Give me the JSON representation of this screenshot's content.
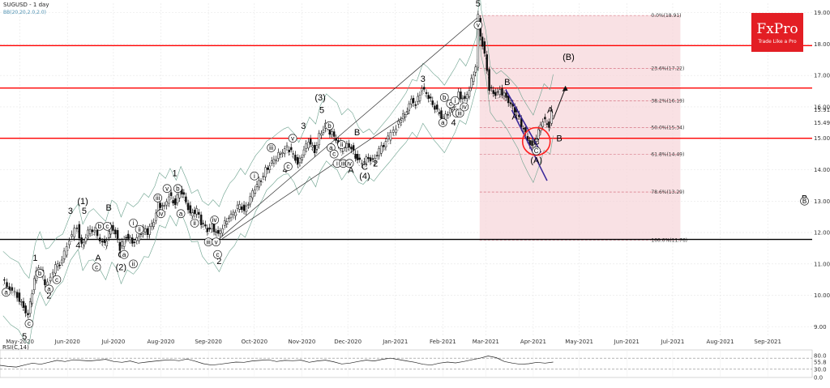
{
  "header": {
    "title": "SUGUSD - 1 day",
    "bb_label": "BB(20,20,2.0,2.0)"
  },
  "logo": {
    "brand": "FxPro",
    "tagline": "Trade Like a Pro",
    "color": "#e31e24"
  },
  "chart_data": {
    "type": "candlestick",
    "symbol": "SUGUSD",
    "timeframe": "1 day",
    "ylim": [
      8.7,
      19.3
    ],
    "y_ticks": [
      "19.00",
      "18.00",
      "17.00",
      "16.00",
      "15.00",
      "14.00",
      "13.00",
      "12.00",
      "11.00",
      "10.00",
      "9.00"
    ],
    "x_ticks": [
      "May-2020",
      "Jun-2020",
      "Jul-2020",
      "Aug-2020",
      "Sep-2020",
      "Oct-2020",
      "Nov-2020",
      "Dec-2020",
      "Jan-2021",
      "Feb-2021",
      "Mar-2021",
      "Apr-2021",
      "May-2021",
      "Jun-2021",
      "Jul-2021",
      "Aug-2021",
      "Sep-2021"
    ],
    "price_path": [
      [
        "2020-04-20",
        10.5
      ],
      [
        "2020-04-25",
        10.2
      ],
      [
        "2020-04-30",
        10.0
      ],
      [
        "2020-05-04",
        9.6
      ],
      [
        "2020-05-07",
        9.4
      ],
      [
        "2020-05-11",
        10.5
      ],
      [
        "2020-05-14",
        10.9
      ],
      [
        "2020-05-18",
        10.4
      ],
      [
        "2020-05-20",
        10.5
      ],
      [
        "2020-05-25",
        10.9
      ],
      [
        "2020-05-29",
        11.1
      ],
      [
        "2020-06-03",
        11.8
      ],
      [
        "2020-06-08",
        12.2
      ],
      [
        "2020-06-11",
        11.6
      ],
      [
        "2020-06-15",
        12.0
      ],
      [
        "2020-06-18",
        12.1
      ],
      [
        "2020-06-23",
        11.8
      ],
      [
        "2020-06-26",
        11.6
      ],
      [
        "2020-06-30",
        12.2
      ],
      [
        "2020-07-03",
        12.0
      ],
      [
        "2020-07-06",
        11.5
      ],
      [
        "2020-07-10",
        11.9
      ],
      [
        "2020-07-14",
        11.7
      ],
      [
        "2020-07-17",
        11.8
      ],
      [
        "2020-07-21",
        12.1
      ],
      [
        "2020-07-24",
        12.0
      ],
      [
        "2020-07-28",
        12.4
      ],
      [
        "2020-07-31",
        12.9
      ],
      [
        "2020-08-04",
        12.8
      ],
      [
        "2020-08-07",
        13.2
      ],
      [
        "2020-08-11",
        12.9
      ],
      [
        "2020-08-14",
        13.4
      ],
      [
        "2020-08-18",
        13.0
      ],
      [
        "2020-08-21",
        12.6
      ],
      [
        "2020-08-25",
        12.7
      ],
      [
        "2020-08-28",
        12.3
      ],
      [
        "2020-09-01",
        12.1
      ],
      [
        "2020-09-04",
        12.2
      ],
      [
        "2020-09-08",
        11.9
      ],
      [
        "2020-09-11",
        12.2
      ],
      [
        "2020-09-15",
        12.5
      ],
      [
        "2020-09-18",
        12.6
      ],
      [
        "2020-09-22",
        12.9
      ],
      [
        "2020-09-25",
        12.7
      ],
      [
        "2020-09-29",
        13.1
      ],
      [
        "2020-10-02",
        13.4
      ],
      [
        "2020-10-06",
        13.7
      ],
      [
        "2020-10-09",
        14.0
      ],
      [
        "2020-10-13",
        14.2
      ],
      [
        "2020-10-16",
        14.4
      ],
      [
        "2020-10-20",
        14.6
      ],
      [
        "2020-10-23",
        14.7
      ],
      [
        "2020-10-27",
        14.5
      ],
      [
        "2020-10-30",
        14.2
      ],
      [
        "2020-11-03",
        14.6
      ],
      [
        "2020-11-06",
        14.9
      ],
      [
        "2020-11-10",
        14.6
      ],
      [
        "2020-11-13",
        15.1
      ],
      [
        "2020-11-17",
        15.4
      ],
      [
        "2020-11-20",
        15.2
      ],
      [
        "2020-11-24",
        15.0
      ],
      [
        "2020-11-27",
        14.6
      ],
      [
        "2020-12-01",
        14.8
      ],
      [
        "2020-12-04",
        14.7
      ],
      [
        "2020-12-08",
        14.3
      ],
      [
        "2020-12-11",
        14.2
      ],
      [
        "2020-12-15",
        14.4
      ],
      [
        "2020-12-18",
        14.3
      ],
      [
        "2020-12-22",
        14.6
      ],
      [
        "2020-12-28",
        15.0
      ],
      [
        "2021-01-04",
        15.5
      ],
      [
        "2021-01-08",
        15.8
      ],
      [
        "2021-01-12",
        16.2
      ],
      [
        "2021-01-15",
        16.1
      ],
      [
        "2021-01-19",
        16.6
      ],
      [
        "2021-01-22",
        16.4
      ],
      [
        "2021-01-26",
        16.1
      ],
      [
        "2021-01-29",
        15.9
      ],
      [
        "2021-02-02",
        15.6
      ],
      [
        "2021-02-05",
        15.8
      ],
      [
        "2021-02-09",
        16.1
      ],
      [
        "2021-02-12",
        16.4
      ],
      [
        "2021-02-16",
        16.2
      ],
      [
        "2021-02-19",
        16.6
      ],
      [
        "2021-02-23",
        17.3
      ],
      [
        "2021-02-25",
        18.9
      ],
      [
        "2021-02-26",
        18.3
      ],
      [
        "2021-03-01",
        17.7
      ],
      [
        "2021-03-04",
        16.6
      ],
      [
        "2021-03-08",
        16.4
      ],
      [
        "2021-03-11",
        16.5
      ],
      [
        "2021-03-15",
        16.3
      ],
      [
        "2021-03-18",
        16.1
      ],
      [
        "2021-03-22",
        15.8
      ],
      [
        "2021-03-25",
        15.4
      ],
      [
        "2021-03-29",
        15.0
      ],
      [
        "2021-04-01",
        14.7
      ],
      [
        "2021-04-05",
        15.2
      ],
      [
        "2021-04-08",
        15.6
      ],
      [
        "2021-04-12",
        15.4
      ],
      [
        "2021-04-14",
        15.9
      ]
    ],
    "horizontal_levels": [
      {
        "price": 17.95,
        "color": "#ff0000"
      },
      {
        "price": 16.6,
        "color": "#ff0000"
      },
      {
        "price": 15.0,
        "color": "#ff0000"
      },
      {
        "price": 11.78,
        "color": "#000000"
      }
    ],
    "fibonacci": {
      "from_date": "2021-02-25",
      "to_date": "2021-07-06",
      "levels": [
        {
          "label": "0.0%(18.91)",
          "price": 18.91
        },
        {
          "label": "23.6%(17.22)",
          "price": 17.22
        },
        {
          "label": "38.2%(16.19)",
          "price": 16.19
        },
        {
          "label": "50.0%(15.34)",
          "price": 15.34
        },
        {
          "label": "61.8%(14.49)",
          "price": 14.49
        },
        {
          "label": "78.6%(13.29)",
          "price": 13.29
        },
        {
          "label": "100.0%(11.76)",
          "price": 11.76
        }
      ]
    },
    "right_axis_tags": [
      {
        "label": "15.91",
        "price": 15.91,
        "color": "#555555"
      },
      {
        "label": "15.49",
        "price": 15.49,
        "color": "#cc3333"
      }
    ],
    "wave_labels": [
      {
        "text": "1",
        "date": "2020-05-11",
        "price": 11.1
      },
      {
        "text": "2",
        "date": "2020-05-20",
        "price": 9.9
      },
      {
        "text": "5",
        "date": "2020-05-04",
        "price": 8.6
      },
      {
        "text": "3",
        "date": "2020-06-03",
        "price": 12.6
      },
      {
        "text": "(1)",
        "date": "2020-06-11",
        "price": 12.9
      },
      {
        "text": "5",
        "date": "2020-06-12",
        "price": 12.6
      },
      {
        "text": "4",
        "date": "2020-06-08",
        "price": 11.5
      },
      {
        "text": "B",
        "date": "2020-06-28",
        "price": 12.7
      },
      {
        "text": "A",
        "date": "2020-06-21",
        "price": 11.1
      },
      {
        "text": "C",
        "date": "2020-07-06",
        "price": 11.2
      },
      {
        "text": "(2)",
        "date": "2020-07-06",
        "price": 10.8
      },
      {
        "text": "1",
        "date": "2020-08-10",
        "price": 13.8
      },
      {
        "text": "2",
        "date": "2020-09-08",
        "price": 11.0
      },
      {
        "text": "4",
        "date": "2020-10-21",
        "price": 13.9
      },
      {
        "text": "3",
        "date": "2020-11-02",
        "price": 15.3
      },
      {
        "text": "(3)",
        "date": "2020-11-13",
        "price": 16.2
      },
      {
        "text": "5",
        "date": "2020-11-14",
        "price": 15.8
      },
      {
        "text": "B",
        "date": "2020-12-07",
        "price": 15.1
      },
      {
        "text": "A",
        "date": "2020-12-03",
        "price": 13.9
      },
      {
        "text": "C",
        "date": "2020-12-12",
        "price": 14.0
      },
      {
        "text": "2",
        "date": "2020-12-19",
        "price": 14.1
      },
      {
        "text": "(4)",
        "date": "2020-12-12",
        "price": 13.7
      },
      {
        "text": "3",
        "date": "2021-01-19",
        "price": 16.8
      },
      {
        "text": "4",
        "date": "2021-02-08",
        "price": 15.4
      },
      {
        "text": "5",
        "date": "2021-02-24",
        "price": 19.2
      },
      {
        "text": "(B)",
        "date": "2021-04-24",
        "price": 17.5
      },
      {
        "text": "B",
        "date": "2021-03-15",
        "price": 16.7
      },
      {
        "text": "A",
        "date": "2021-03-20",
        "price": 15.6
      },
      {
        "text": "A",
        "date": "2021-04-12",
        "price": 15.8
      },
      {
        "text": "B",
        "date": "2021-04-18",
        "price": 14.9
      },
      {
        "text": "C",
        "date": "2021-04-03",
        "price": 14.8
      },
      {
        "text": "(A)",
        "date": "2021-04-03",
        "price": 14.2
      },
      {
        "text": "B",
        "date": "2021-09-25",
        "price": 13.0
      }
    ],
    "circled_labels": [
      {
        "text": "a",
        "date": "2020-04-22",
        "price": 10.1
      },
      {
        "text": "b",
        "date": "2020-05-14",
        "price": 10.7
      },
      {
        "text": "c",
        "date": "2020-05-07",
        "price": 9.1
      },
      {
        "text": "a",
        "date": "2020-05-20",
        "price": 10.2
      },
      {
        "text": "c",
        "date": "2020-05-25",
        "price": 10.5
      },
      {
        "text": "b",
        "date": "2020-06-22",
        "price": 12.2
      },
      {
        "text": "c",
        "date": "2020-06-27",
        "price": 12.2
      },
      {
        "text": "c",
        "date": "2020-06-20",
        "price": 10.9
      },
      {
        "text": "a",
        "date": "2020-07-08",
        "price": 11.3
      },
      {
        "text": "ii",
        "date": "2020-07-14",
        "price": 11.0
      },
      {
        "text": "i",
        "date": "2020-07-14",
        "price": 12.3
      },
      {
        "text": "ii",
        "date": "2020-07-18",
        "price": 12.1
      },
      {
        "text": "iii",
        "date": "2020-07-30",
        "price": 13.1
      },
      {
        "text": "v",
        "date": "2020-08-05",
        "price": 13.4
      },
      {
        "text": "b",
        "date": "2020-08-12",
        "price": 13.4
      },
      {
        "text": "iv",
        "date": "2020-08-01",
        "price": 12.6
      },
      {
        "text": "a",
        "date": "2020-08-14",
        "price": 12.6
      },
      {
        "text": "ii",
        "date": "2020-08-23",
        "price": 12.3
      },
      {
        "text": "iv",
        "date": "2020-09-05",
        "price": 12.4
      },
      {
        "text": "iii",
        "date": "2020-09-01",
        "price": 11.7
      },
      {
        "text": "v",
        "date": "2020-09-06",
        "price": 11.7
      },
      {
        "text": "c",
        "date": "2020-09-07",
        "price": 11.3
      },
      {
        "text": "i",
        "date": "2020-10-01",
        "price": 13.8
      },
      {
        "text": "iii",
        "date": "2020-10-12",
        "price": 14.7
      },
      {
        "text": "v",
        "date": "2020-10-26",
        "price": 15.0
      },
      {
        "text": "c",
        "date": "2020-10-23",
        "price": 14.1
      },
      {
        "text": "b",
        "date": "2020-11-19",
        "price": 15.4
      },
      {
        "text": "a",
        "date": "2020-11-20",
        "price": 14.7
      },
      {
        "text": "c",
        "date": "2020-11-22",
        "price": 14.5
      },
      {
        "text": "i",
        "date": "2020-11-24",
        "price": 14.2
      },
      {
        "text": "ii",
        "date": "2020-11-27",
        "price": 14.8
      },
      {
        "text": "iii",
        "date": "2020-11-28",
        "price": 14.2
      },
      {
        "text": "iv",
        "date": "2020-12-02",
        "price": 14.2
      },
      {
        "text": "b",
        "date": "2021-02-02",
        "price": 16.3
      },
      {
        "text": "c",
        "date": "2021-02-06",
        "price": 16.1
      },
      {
        "text": "a",
        "date": "2021-02-01",
        "price": 15.5
      },
      {
        "text": "i",
        "date": "2021-02-09",
        "price": 16.2
      },
      {
        "text": "ii",
        "date": "2021-02-10",
        "price": 15.8
      },
      {
        "text": "iii",
        "date": "2021-02-12",
        "price": 15.8
      },
      {
        "text": "iv",
        "date": "2021-02-15",
        "price": 16.0
      },
      {
        "text": "v",
        "date": "2021-02-24",
        "price": 18.6
      },
      {
        "text": "C",
        "date": "2021-04-03",
        "price": 14.6
      },
      {
        "text": "B",
        "date": "2021-09-25",
        "price": 13.0
      }
    ],
    "rsi": {
      "label": "RSI(C,14)",
      "ylim": [
        0,
        100
      ],
      "y_ticks": [
        "80.0",
        "55.8",
        "30.0",
        "0.0"
      ],
      "guide_levels": [
        70,
        30
      ],
      "values": [
        44,
        40,
        38,
        45,
        52,
        48,
        55,
        62,
        58,
        64,
        62,
        60,
        63,
        66,
        58,
        55,
        60,
        52,
        56,
        59,
        62,
        64,
        61,
        67,
        59,
        50,
        45,
        48,
        52,
        56,
        55,
        60,
        62,
        64,
        58,
        62,
        61,
        63,
        55,
        60,
        63,
        57,
        49,
        52,
        58,
        63,
        60,
        66,
        70,
        65,
        60,
        55,
        48,
        45,
        52,
        56,
        53,
        58,
        64,
        70,
        78,
        72,
        58,
        52,
        48,
        50,
        55,
        52,
        56
      ]
    }
  }
}
